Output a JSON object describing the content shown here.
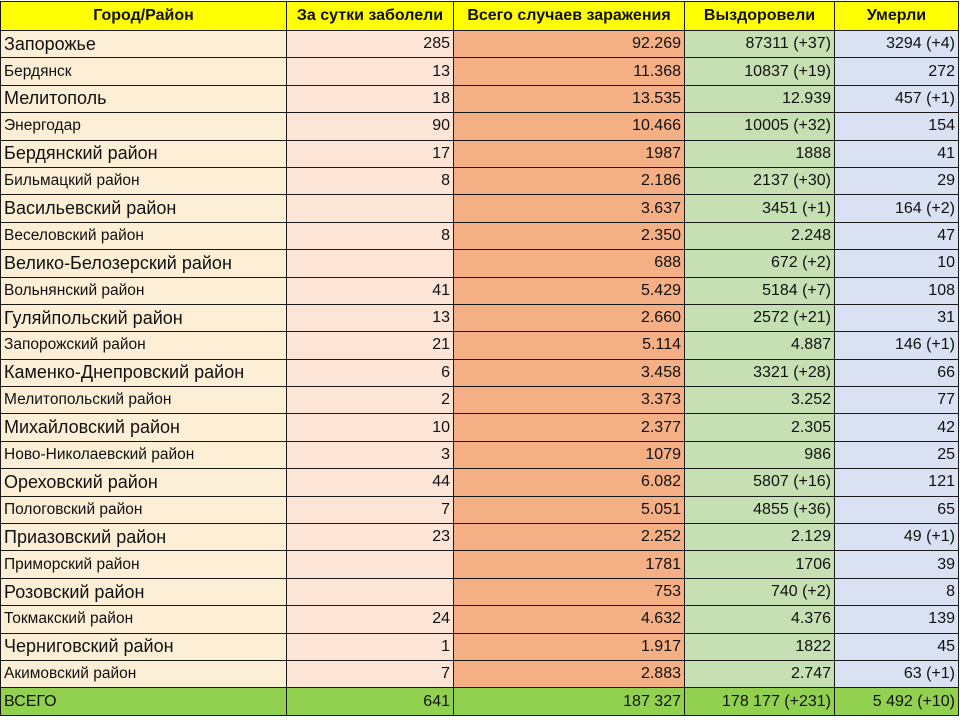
{
  "headers": [
    "Город/Район",
    "За сутки заболели",
    "Всего случаев заражения",
    "Выздоровели",
    "Умерли"
  ],
  "rows": [
    {
      "name": "Запорожье",
      "daily": "285",
      "total": "92.269",
      "recovered": "87311 (+37)",
      "died": "3294 (+4)"
    },
    {
      "name": "Бердянск",
      "daily": "13",
      "total": "11.368",
      "recovered": "10837 (+19)",
      "died": "272"
    },
    {
      "name": "Мелитополь",
      "daily": "18",
      "total": "13.535",
      "recovered": "12.939",
      "died": "457 (+1)"
    },
    {
      "name": "Энергодар",
      "daily": "90",
      "total": "10.466",
      "recovered": "10005 (+32)",
      "died": "154"
    },
    {
      "name": "Бердянский район",
      "daily": "17",
      "total": "1987",
      "recovered": "1888",
      "died": "41"
    },
    {
      "name": "Бильмацкий район",
      "daily": "8",
      "total": "2.186",
      "recovered": "2137 (+30)",
      "died": "29"
    },
    {
      "name": "Васильевский район",
      "daily": "",
      "total": "3.637",
      "recovered": "3451 (+1)",
      "died": "164 (+2)"
    },
    {
      "name": "Веселовский район",
      "daily": "8",
      "total": "2.350",
      "recovered": "2.248",
      "died": "47"
    },
    {
      "name": "Велико-Белозерский район",
      "daily": "",
      "total": "688",
      "recovered": "672 (+2)",
      "died": "10"
    },
    {
      "name": "Вольнянский район",
      "daily": "41",
      "total": "5.429",
      "recovered": "5184 (+7)",
      "died": "108"
    },
    {
      "name": "Гуляйпольский район",
      "daily": "13",
      "total": "2.660",
      "recovered": "2572 (+21)",
      "died": "31"
    },
    {
      "name": "Запорожский район",
      "daily": "21",
      "total": "5.114",
      "recovered": "4.887",
      "died": "146 (+1)"
    },
    {
      "name": "Каменко-Днепровский район",
      "daily": "6",
      "total": "3.458",
      "recovered": "3321 (+28)",
      "died": "66"
    },
    {
      "name": "Мелитопольский район",
      "daily": "2",
      "total": "3.373",
      "recovered": "3.252",
      "died": "77"
    },
    {
      "name": "Михайловский район",
      "daily": "10",
      "total": "2.377",
      "recovered": "2.305",
      "died": "42"
    },
    {
      "name": "Ново-Николаевский район",
      "daily": "3",
      "total": "1079",
      "recovered": "986",
      "died": "25"
    },
    {
      "name": "Ореховский район",
      "daily": "44",
      "total": "6.082",
      "recovered": "5807 (+16)",
      "died": "121"
    },
    {
      "name": "Пологовский район",
      "daily": "7",
      "total": "5.051",
      "recovered": "4855 (+36)",
      "died": "65"
    },
    {
      "name": "Приазовский район",
      "daily": "23",
      "total": "2.252",
      "recovered": "2.129",
      "died": "49 (+1)"
    },
    {
      "name": "Приморский район",
      "daily": "",
      "total": "1781",
      "recovered": "1706",
      "died": "39"
    },
    {
      "name": "Розовский район",
      "daily": "",
      "total": "753",
      "recovered": "740 (+2)",
      "died": "8"
    },
    {
      "name": "Токмакский район",
      "daily": "24",
      "total": "4.632",
      "recovered": "4.376",
      "died": "139"
    },
    {
      "name": "Черниговский район",
      "daily": "1",
      "total": "1.917",
      "recovered": "1822",
      "died": "45"
    },
    {
      "name": "Акимовский район",
      "daily": "7",
      "total": "2.883",
      "recovered": "2.747",
      "died": "63 (+1)"
    }
  ],
  "total_row": {
    "name": "ВСЕГО",
    "daily": "641",
    "total": "187 327",
    "recovered": "178 177 (+231)",
    "died": "5 492 (+10)"
  },
  "colors": {
    "header": "#ffff00",
    "name_column": "#fdefd6",
    "daily_column": "#fce4d6",
    "total_column": "#f4b084",
    "recovered_column": "#c6e0b4",
    "died_column": "#d9e1f2",
    "total_row": "#92d050"
  }
}
